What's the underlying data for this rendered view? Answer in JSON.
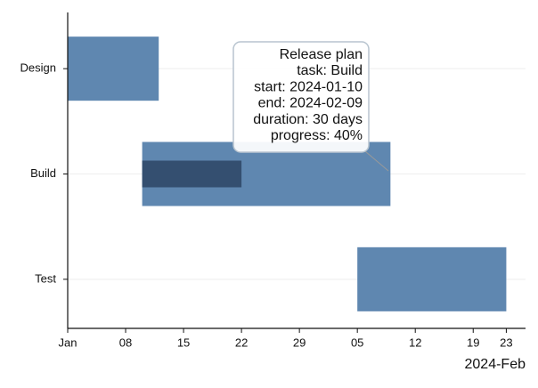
{
  "chart_data": {
    "type": "gantt",
    "categories": [
      "Design",
      "Build",
      "Test"
    ],
    "start": [
      "2024-01-01",
      "2024-01-10",
      "2024-02-05"
    ],
    "end": [
      "2024-01-12",
      "2024-02-09",
      "2024-02-23"
    ],
    "progress": [
      null,
      40,
      null
    ],
    "color": "#5f87b0",
    "progress_color": "#344f70",
    "xlim": [
      "2024-01-01",
      "2024-02-25"
    ],
    "xticks": [
      {
        "value": "2024-01-01",
        "label": "Jan"
      },
      {
        "value": "2024-01-08",
        "label": "08"
      },
      {
        "value": "2024-01-15",
        "label": "15"
      },
      {
        "value": "2024-01-22",
        "label": "22"
      },
      {
        "value": "2024-01-29",
        "label": "29"
      },
      {
        "value": "2024-02-05",
        "label": "05"
      },
      {
        "value": "2024-02-12",
        "label": "12"
      },
      {
        "value": "2024-02-19",
        "label": "19"
      },
      {
        "value": "2024-02-23",
        "label": "23"
      }
    ],
    "x_offset_label": "2024-Feb",
    "grid": true,
    "tooltip": {
      "title": "Release plan",
      "task": 1,
      "lines": [
        "task: Build",
        "start: 2024-01-10",
        "end: 2024-02-09",
        "duration: 30 days",
        "progress: 40%"
      ]
    }
  }
}
